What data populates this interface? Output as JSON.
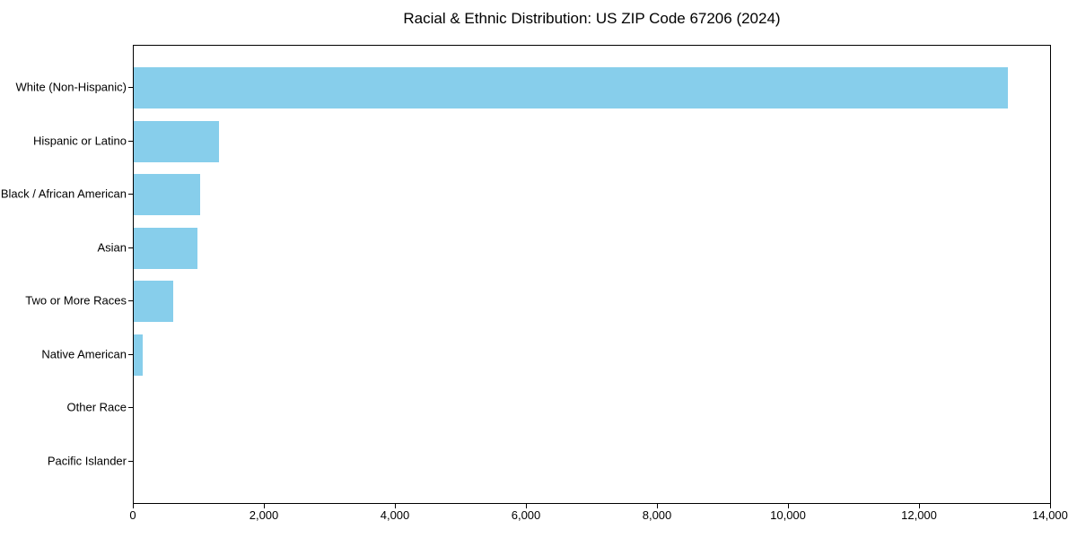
{
  "figure": {
    "title": "Racial & Ethnic Distribution: US ZIP Code 67206 (2024)"
  },
  "chart_data": {
    "type": "bar",
    "orientation": "horizontal",
    "title": "Racial & Ethnic Distribution: US ZIP Code 67206 (2024)",
    "xlabel": "",
    "ylabel": "",
    "categories": [
      "White (Non-Hispanic)",
      "Hispanic or Latino",
      "Black / African American",
      "Asian",
      "Two or More Races",
      "Native American",
      "Other Race",
      "Pacific Islander"
    ],
    "values": [
      13340,
      1300,
      1010,
      970,
      600,
      130,
      0,
      0
    ],
    "xlim": [
      0,
      14000
    ],
    "x_tick_values": [
      0,
      2000,
      4000,
      6000,
      8000,
      10000,
      12000,
      14000
    ],
    "x_tick_labels": [
      "0",
      "2,000",
      "4,000",
      "6,000",
      "8,000",
      "10,000",
      "12,000",
      "14,000"
    ],
    "bar_color": "#87CEEB",
    "axis_color": "#000000",
    "text_color": "#000000",
    "background": "#FFFFFF",
    "grid": false,
    "legend": "none"
  }
}
